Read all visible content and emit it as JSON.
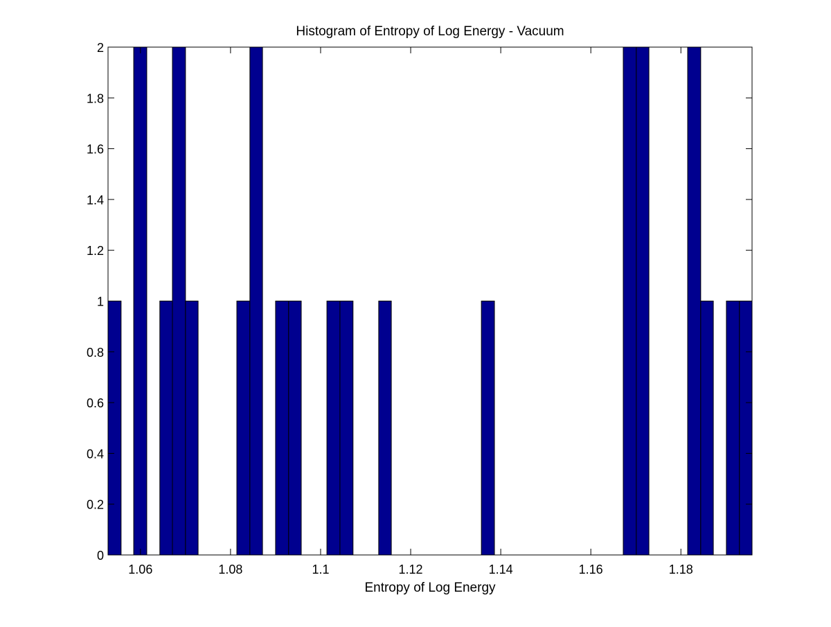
{
  "chart_data": {
    "type": "bar",
    "title": "Histogram of Entropy of Log Energy - Vacuum",
    "xlabel": "Entropy of Log Energy",
    "ylabel": "",
    "xlim": [
      1.0528,
      1.1958
    ],
    "ylim": [
      0,
      2
    ],
    "x_ticks": [
      1.06,
      1.08,
      1.1,
      1.12,
      1.14,
      1.16,
      1.18
    ],
    "x_tick_labels": [
      "1.06",
      "1.08",
      "1.1",
      "1.12",
      "1.14",
      "1.16",
      "1.18"
    ],
    "y_ticks": [
      0,
      0.2,
      0.4,
      0.6,
      0.8,
      1,
      1.2,
      1.4,
      1.6,
      1.8,
      2
    ],
    "y_tick_labels": [
      "0",
      "0.2",
      "0.4",
      "0.6",
      "0.8",
      "1",
      "1.2",
      "1.4",
      "1.6",
      "1.8",
      "2"
    ],
    "grid": false,
    "bar_color": "#00008f",
    "bar_edge_color": "#000000",
    "bin_width": 0.00286,
    "bins": [
      {
        "x_start": 1.0528,
        "x_end": 1.0557,
        "value": 1
      },
      {
        "x_start": 1.0585,
        "x_end": 1.0614,
        "value": 2
      },
      {
        "x_start": 1.0643,
        "x_end": 1.0671,
        "value": 1
      },
      {
        "x_start": 1.0671,
        "x_end": 1.07,
        "value": 2
      },
      {
        "x_start": 1.07,
        "x_end": 1.0728,
        "value": 1
      },
      {
        "x_start": 1.0814,
        "x_end": 1.0843,
        "value": 1
      },
      {
        "x_start": 1.0843,
        "x_end": 1.0871,
        "value": 2
      },
      {
        "x_start": 1.09,
        "x_end": 1.0929,
        "value": 1
      },
      {
        "x_start": 1.0929,
        "x_end": 1.0957,
        "value": 1
      },
      {
        "x_start": 1.1014,
        "x_end": 1.1043,
        "value": 1
      },
      {
        "x_start": 1.1043,
        "x_end": 1.1072,
        "value": 1
      },
      {
        "x_start": 1.1129,
        "x_end": 1.1157,
        "value": 1
      },
      {
        "x_start": 1.1357,
        "x_end": 1.1386,
        "value": 1
      },
      {
        "x_start": 1.1672,
        "x_end": 1.1701,
        "value": 2
      },
      {
        "x_start": 1.1701,
        "x_end": 1.1729,
        "value": 2
      },
      {
        "x_start": 1.1815,
        "x_end": 1.1844,
        "value": 2
      },
      {
        "x_start": 1.1844,
        "x_end": 1.1872,
        "value": 1
      },
      {
        "x_start": 1.1901,
        "x_end": 1.193,
        "value": 1
      },
      {
        "x_start": 1.193,
        "x_end": 1.1958,
        "value": 1
      }
    ]
  }
}
